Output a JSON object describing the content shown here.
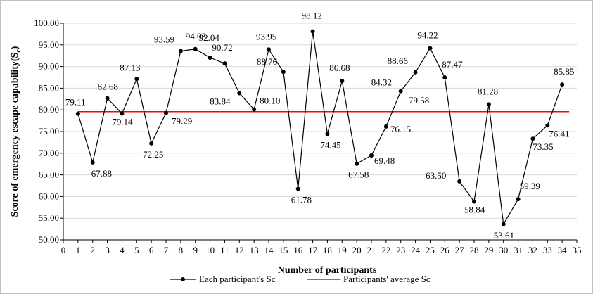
{
  "chart_data": {
    "type": "line",
    "xlabel": "Number of participants",
    "ylabel": "Score of emergency escape capability(S",
    "ylabel_subscript": "c",
    "ylabel_suffix": ")",
    "xlim": [
      0,
      35
    ],
    "ylim": [
      50,
      100
    ],
    "x_ticks": [
      "0",
      "1",
      "2",
      "3",
      "4",
      "5",
      "6",
      "7",
      "8",
      "9",
      "10",
      "11",
      "12",
      "13",
      "14",
      "15",
      "16",
      "17",
      "18",
      "19",
      "20",
      "21",
      "22",
      "23",
      "24",
      "25",
      "26",
      "27",
      "28",
      "29",
      "30",
      "31",
      "32",
      "33",
      "34",
      "35"
    ],
    "y_ticks": [
      "50.00",
      "55.00",
      "60.00",
      "65.00",
      "70.00",
      "75.00",
      "80.00",
      "85.00",
      "90.00",
      "95.00",
      "100.00"
    ],
    "series": [
      {
        "name": "Each participant's Sc",
        "color": "#000000",
        "x": [
          1,
          2,
          3,
          4,
          5,
          6,
          7,
          8,
          9,
          10,
          11,
          12,
          13,
          14,
          15,
          16,
          17,
          18,
          19,
          20,
          21,
          22,
          23,
          24,
          25,
          26,
          27,
          28,
          29,
          30,
          31,
          32,
          33,
          34
        ],
        "values": [
          79.11,
          67.88,
          82.68,
          79.14,
          87.13,
          72.25,
          79.29,
          93.59,
          94.03,
          92.04,
          90.72,
          83.84,
          80.1,
          93.95,
          88.76,
          61.78,
          98.12,
          74.45,
          86.68,
          67.58,
          69.48,
          76.15,
          84.32,
          88.66,
          94.22,
          87.47,
          63.5,
          58.84,
          81.28,
          53.61,
          59.39,
          73.35,
          76.41,
          85.85
        ],
        "labels": [
          "79.11",
          "67.88",
          "82.68",
          "79.14",
          "87.13",
          "72.25",
          "79.29",
          "93.59",
          "94.03",
          "92.04",
          "90.72",
          "83.84",
          "80.10",
          "93.95",
          "88.76",
          "61.78",
          "98.12",
          "74.45",
          "86.68",
          "67.58",
          "69.48",
          "76.15",
          "84.32",
          "88.66",
          "94.22",
          "87.47",
          "63.50",
          "58.84",
          "81.28",
          "53.61",
          "59.39",
          "73.35",
          "76.41",
          "85.85"
        ]
      },
      {
        "name": "Participants' average Sc",
        "color": "#ff0000",
        "value": 79.58,
        "label": "79.58"
      }
    ],
    "legend": {
      "placement": "bottom-center"
    }
  }
}
